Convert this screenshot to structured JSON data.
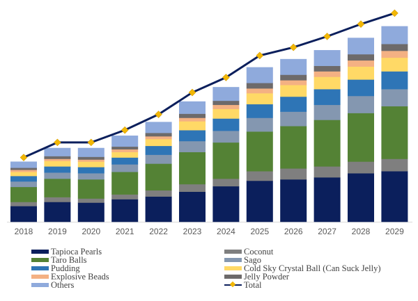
{
  "chart_data": {
    "type": "bar",
    "stacked": true,
    "title": "",
    "xlabel": "",
    "ylabel": "",
    "value_axis_visible": false,
    "units": "relative (no value axis shown; estimated)",
    "grid": false,
    "legend_position": "bottom",
    "categories": [
      "2018",
      "2019",
      "2020",
      "2021",
      "2022",
      "2023",
      "2024",
      "2025",
      "2026",
      "2027",
      "2028",
      "2029"
    ],
    "series": [
      {
        "name": "Tapioca Pearls",
        "color": "#0b1f5c",
        "values": [
          23,
          29,
          28,
          33,
          37,
          44,
          52,
          60,
          62,
          65,
          71,
          74
        ]
      },
      {
        "name": "Coconut",
        "color": "#7f7f7f",
        "values": [
          6,
          7,
          6,
          7,
          9,
          11,
          11,
          14,
          16,
          16,
          17,
          18
        ]
      },
      {
        "name": "Taro Balls",
        "color": "#548235",
        "values": [
          22,
          27,
          28,
          33,
          39,
          47,
          53,
          58,
          62,
          68,
          71,
          77
        ]
      },
      {
        "name": "Sago",
        "color": "#8497b0",
        "values": [
          8,
          9,
          9,
          11,
          13,
          16,
          17,
          20,
          21,
          22,
          25,
          25
        ]
      },
      {
        "name": "Pudding",
        "color": "#2e75b6",
        "values": [
          8,
          9,
          9,
          10,
          13,
          16,
          18,
          20,
          22,
          23,
          24,
          26
        ]
      },
      {
        "name": "Cold Sky Crystal Ball (Can Suck Jelly)",
        "color": "#ffd966",
        "values": [
          6,
          8,
          8,
          8,
          10,
          13,
          14,
          16,
          17,
          18,
          19,
          20
        ]
      },
      {
        "name": "Explosive Beads",
        "color": "#f4b183",
        "values": [
          3,
          3,
          3,
          4,
          4,
          5,
          6,
          7,
          7,
          8,
          9,
          10
        ]
      },
      {
        "name": "Jelly Powder",
        "color": "#6d6a6a",
        "values": [
          3,
          4,
          4,
          4,
          5,
          6,
          6,
          8,
          8,
          8,
          9,
          10
        ]
      },
      {
        "name": "Others",
        "color": "#8faadc",
        "values": [
          9,
          12,
          13,
          16,
          16,
          18,
          20,
          23,
          23,
          23,
          24,
          26
        ]
      }
    ],
    "line_series": {
      "name": "Total",
      "color": "#0b1f5c",
      "marker_color": "#f2b705",
      "values": [
        94,
        116,
        116,
        134,
        157,
        189,
        211,
        243,
        255,
        271,
        289,
        305
      ]
    },
    "ylim": [
      0,
      310
    ]
  },
  "legend": {
    "left": [
      {
        "label": "Tapioca Pearls",
        "color": "#0b1f5c",
        "type": "bar"
      },
      {
        "label": "Taro Balls",
        "color": "#548235",
        "type": "bar"
      },
      {
        "label": "Pudding",
        "color": "#2e75b6",
        "type": "bar"
      },
      {
        "label": "Explosive Beads",
        "color": "#f4b183",
        "type": "bar"
      },
      {
        "label": "Others",
        "color": "#8faadc",
        "type": "bar"
      }
    ],
    "right": [
      {
        "label": "Coconut",
        "color": "#7f7f7f",
        "type": "bar"
      },
      {
        "label": "Sago",
        "color": "#8497b0",
        "type": "bar"
      },
      {
        "label": "Cold Sky Crystal Ball (Can Suck Jelly)",
        "color": "#ffd966",
        "type": "bar"
      },
      {
        "label": "Jelly Powder",
        "color": "#6d6a6a",
        "type": "bar"
      },
      {
        "label": "Total",
        "color": "#0b1f5c",
        "marker_color": "#f2b705",
        "type": "line"
      }
    ]
  }
}
